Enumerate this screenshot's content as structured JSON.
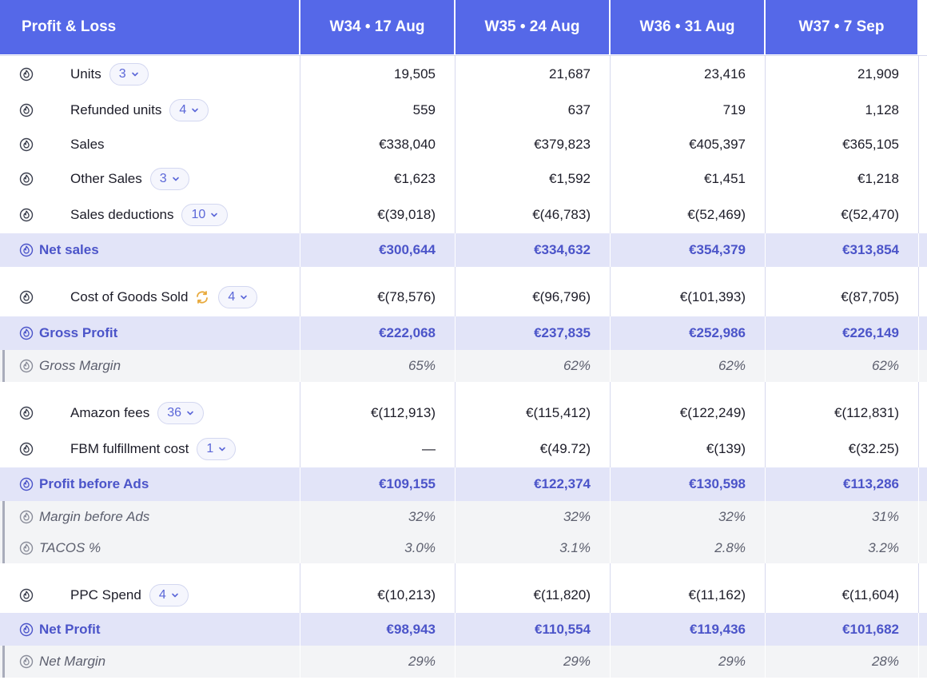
{
  "header": {
    "title": "Profit & Loss",
    "weeks": [
      "W34 • 17 Aug",
      "W35 • 24 Aug",
      "W36 • 31 Aug",
      "W37 • 7 Sep"
    ]
  },
  "rows": {
    "units": {
      "label": "Units",
      "count": "3",
      "values": [
        "19,505",
        "21,687",
        "23,416",
        "21,909"
      ]
    },
    "refunded_units": {
      "label": "Refunded units",
      "count": "4",
      "values": [
        "559",
        "637",
        "719",
        "1,128"
      ]
    },
    "sales": {
      "label": "Sales",
      "values": [
        "€338,040",
        "€379,823",
        "€405,397",
        "€365,105"
      ]
    },
    "other_sales": {
      "label": "Other Sales",
      "count": "3",
      "values": [
        "€1,623",
        "€1,592",
        "€1,451",
        "€1,218"
      ]
    },
    "sales_deductions": {
      "label": "Sales deductions",
      "count": "10",
      "values": [
        "€(39,018)",
        "€(46,783)",
        "€(52,469)",
        "€(52,470)"
      ]
    },
    "net_sales": {
      "label": "Net sales",
      "values": [
        "€300,644",
        "€334,632",
        "€354,379",
        "€313,854"
      ]
    },
    "cogs": {
      "label": "Cost of Goods Sold",
      "count": "4",
      "values": [
        "€(78,576)",
        "€(96,796)",
        "€(101,393)",
        "€(87,705)"
      ]
    },
    "gross_profit": {
      "label": "Gross Profit",
      "values": [
        "€222,068",
        "€237,835",
        "€252,986",
        "€226,149"
      ]
    },
    "gross_margin": {
      "label": "Gross Margin",
      "values": [
        "65%",
        "62%",
        "62%",
        "62%"
      ]
    },
    "amazon_fees": {
      "label": "Amazon fees",
      "count": "36",
      "values": [
        "€(112,913)",
        "€(115,412)",
        "€(122,249)",
        "€(112,831)"
      ]
    },
    "fbm_cost": {
      "label": "FBM fulfillment cost",
      "count": "1",
      "values": [
        "—",
        "€(49.72)",
        "€(139)",
        "€(32.25)"
      ]
    },
    "profit_before_ads": {
      "label": "Profit before Ads",
      "values": [
        "€109,155",
        "€122,374",
        "€130,598",
        "€113,286"
      ]
    },
    "margin_before_ads": {
      "label": "Margin before Ads",
      "values": [
        "32%",
        "32%",
        "32%",
        "31%"
      ]
    },
    "tacos": {
      "label": "TACOS %",
      "values": [
        "3.0%",
        "3.1%",
        "2.8%",
        "3.2%"
      ]
    },
    "ppc_spend": {
      "label": "PPC Spend",
      "count": "4",
      "values": [
        "€(10,213)",
        "€(11,820)",
        "€(11,162)",
        "€(11,604)"
      ]
    },
    "net_profit": {
      "label": "Net Profit",
      "values": [
        "€98,943",
        "€110,554",
        "€119,436",
        "€101,682"
      ]
    },
    "net_margin": {
      "label": "Net Margin",
      "values": [
        "29%",
        "29%",
        "29%",
        "28%"
      ]
    }
  },
  "colors": {
    "header_bg": "#5568e8",
    "total_row_bg": "#e2e4f8",
    "total_text": "#4b54c9",
    "ratio_row_bg": "#f3f4f6",
    "sync_icon": "#e8a93b"
  },
  "icons": {
    "row_icon": "flame-in-circle-icon",
    "dropdown_icon": "chevron-down-icon",
    "cogs_status_icon": "sync-icon"
  }
}
